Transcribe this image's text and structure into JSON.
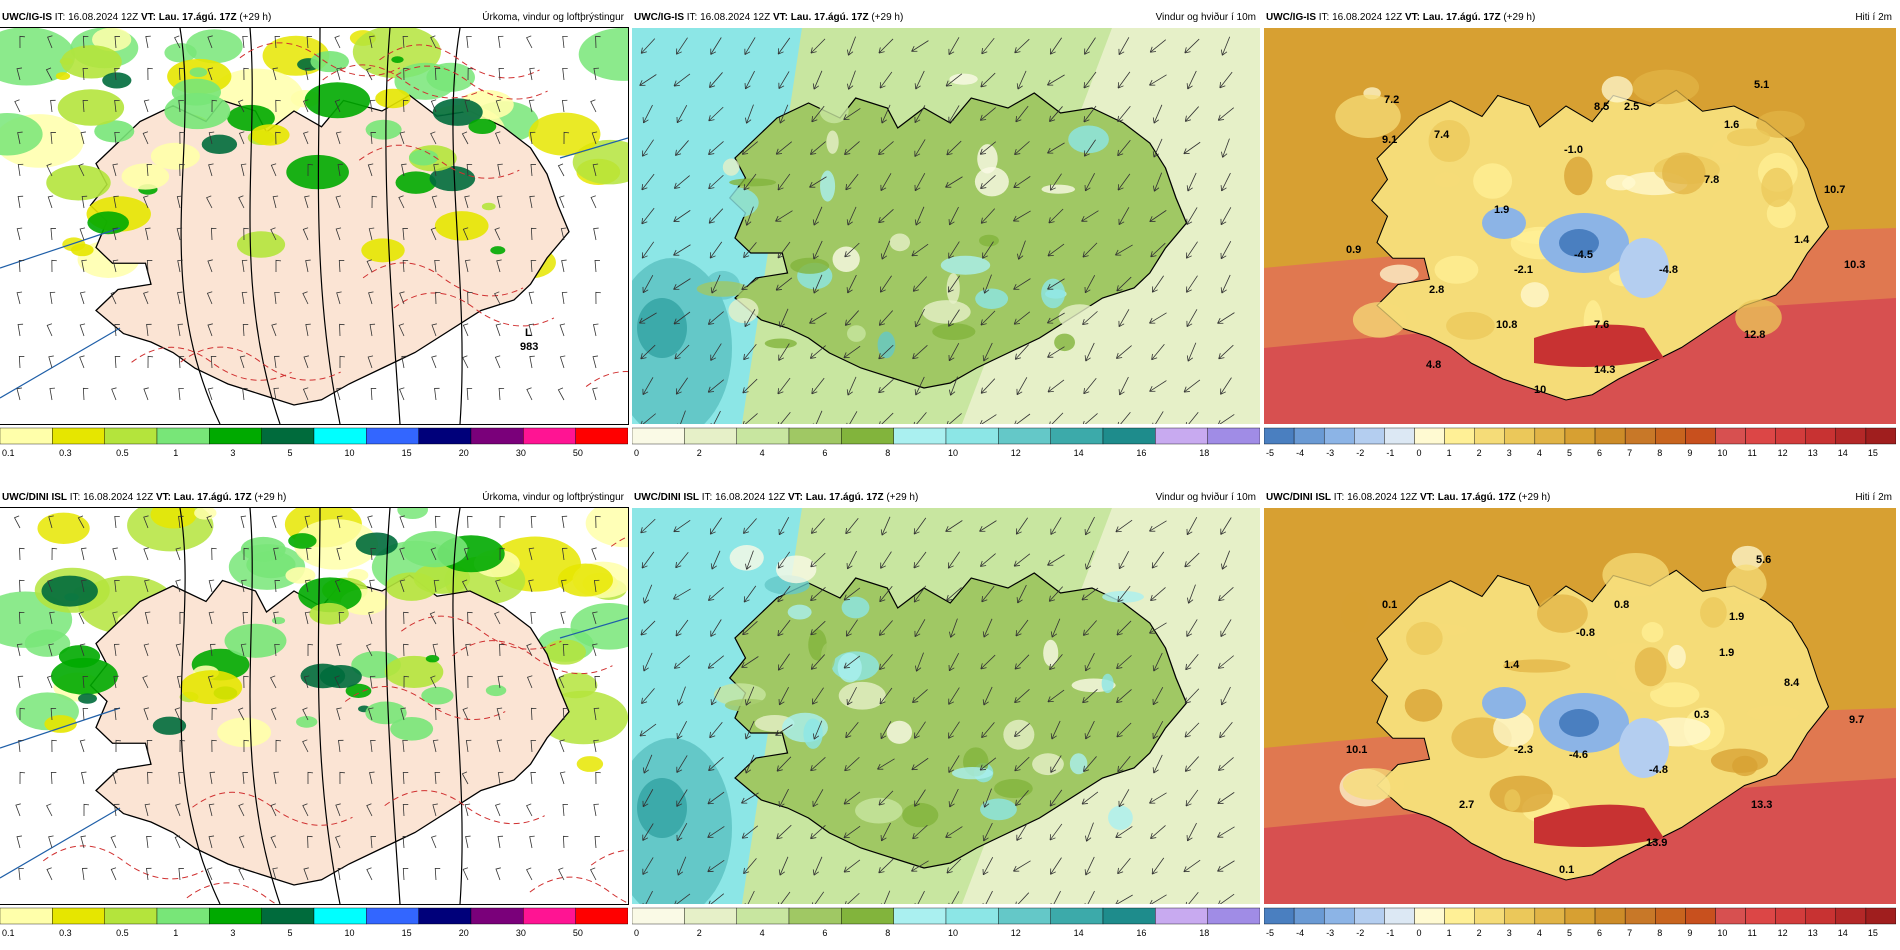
{
  "colors": {
    "precip": [
      "#ffffaa",
      "#e6e600",
      "#b4e43c",
      "#78e678",
      "#00aa00",
      "#006b3c",
      "#00ffff",
      "#3366ff",
      "#00007a",
      "#7a007a",
      "#ff1493",
      "#ff0000"
    ],
    "wind": [
      "#fafae6",
      "#e6f0c8",
      "#c8e6a0",
      "#a0c864",
      "#82b43c",
      "#aaf0f0",
      "#8ce6e6",
      "#64c8c8",
      "#3caaaa",
      "#1e8c8c",
      "#c8aaf0",
      "#a08ce6"
    ],
    "temp": [
      "#4a7fc0",
      "#6a9ad4",
      "#8cb4e6",
      "#b4cef0",
      "#dce8f4",
      "#fffad2",
      "#fff096",
      "#f5dc78",
      "#ebc85a",
      "#e1b446",
      "#d7a032",
      "#cd8c28",
      "#c87828",
      "#c8641e",
      "#c8501e",
      "#d75050",
      "#dc4646",
      "#d23c3c",
      "#c83232",
      "#b42828",
      "#a01e1e"
    ]
  },
  "rows": [
    {
      "model": "UWC/IG-IS",
      "panels": [
        {
          "it_label": "IT:",
          "it_value": "16.08.2024 12Z",
          "vt_label": "VT:",
          "vt_value": "Lau. 17.ágú. 17Z",
          "lead": "(+29 h)",
          "title": "Úrkoma, vindur og loftþrýstingur",
          "labels": [
            "L",
            "983"
          ],
          "legend_ticks": [
            "0.1",
            "0.3",
            "0.5",
            "1",
            "3",
            "5",
            "10",
            "15",
            "20",
            "30",
            "50"
          ]
        },
        {
          "it_label": "IT:",
          "it_value": "16.08.2024 12Z",
          "vt_label": "VT:",
          "vt_value": "Lau. 17.ágú. 17Z",
          "lead": "(+29 h)",
          "title": "Vindur og hviður í 10m",
          "labels": [],
          "legend_ticks": [
            "0",
            "2",
            "4",
            "6",
            "8",
            "10",
            "12",
            "14",
            "16",
            "18"
          ]
        },
        {
          "it_label": "IT:",
          "it_value": "16.08.2024 12Z",
          "vt_label": "VT:",
          "vt_value": "Lau. 17.ágú. 17Z",
          "lead": "(+29 h)",
          "title": "Hiti í 2m",
          "labels": [
            "7.2",
            "8.5",
            "2.5",
            "5.1",
            "9.1",
            "7.4",
            "-1.0",
            "1.6",
            "7.8",
            "10.7",
            "1.9",
            "0.9",
            "-2.1",
            "-4.5",
            "-4.8",
            "1.4",
            "10.3",
            "2.8",
            "7.6",
            "10.8",
            "12.8",
            "4.8",
            "14.3",
            "10"
          ],
          "legend_ticks": [
            "-5",
            "-4",
            "-3",
            "-2",
            "-1",
            "0",
            "1",
            "2",
            "3",
            "4",
            "5",
            "6",
            "7",
            "8",
            "9",
            "10",
            "11",
            "12",
            "13",
            "14",
            "15"
          ]
        }
      ]
    },
    {
      "model": "UWC/DINI ISL",
      "panels": [
        {
          "it_label": "IT:",
          "it_value": "16.08.2024 12Z",
          "vt_label": "VT:",
          "vt_value": "Lau. 17.ágú. 17Z",
          "lead": "(+29 h)",
          "title": "Úrkoma, vindur og loftþrýstingur",
          "labels": [],
          "legend_ticks": [
            "0.1",
            "0.3",
            "0.5",
            "1",
            "3",
            "5",
            "10",
            "15",
            "20",
            "30",
            "50"
          ]
        },
        {
          "it_label": "IT:",
          "it_value": "16.08.2024 12Z",
          "vt_label": "VT:",
          "vt_value": "Lau. 17.ágú. 17Z",
          "lead": "(+29 h)",
          "title": "Vindur og hviður í 10m",
          "labels": [],
          "legend_ticks": [
            "0",
            "2",
            "4",
            "6",
            "8",
            "10",
            "12",
            "14",
            "16",
            "18"
          ]
        },
        {
          "it_label": "IT:",
          "it_value": "16.08.2024 12Z",
          "vt_label": "VT:",
          "vt_value": "Lau. 17.ágú. 17Z",
          "lead": "(+29 h)",
          "title": "Hiti í 2m",
          "labels": [
            "5.6",
            "0.1",
            "0.8",
            "1.9",
            "-0.8",
            "1.9",
            "1.4",
            "8.4",
            "0.3",
            "9.7",
            "10.1",
            "-2.3",
            "-4.6",
            "-4.8",
            "2.7",
            "13.3",
            "13.9",
            "0.1"
          ],
          "legend_ticks": [
            "-5",
            "-4",
            "-3",
            "-2",
            "-1",
            "0",
            "1",
            "2",
            "3",
            "4",
            "5",
            "6",
            "7",
            "8",
            "9",
            "10",
            "11",
            "12",
            "13",
            "14",
            "15"
          ]
        }
      ]
    }
  ]
}
